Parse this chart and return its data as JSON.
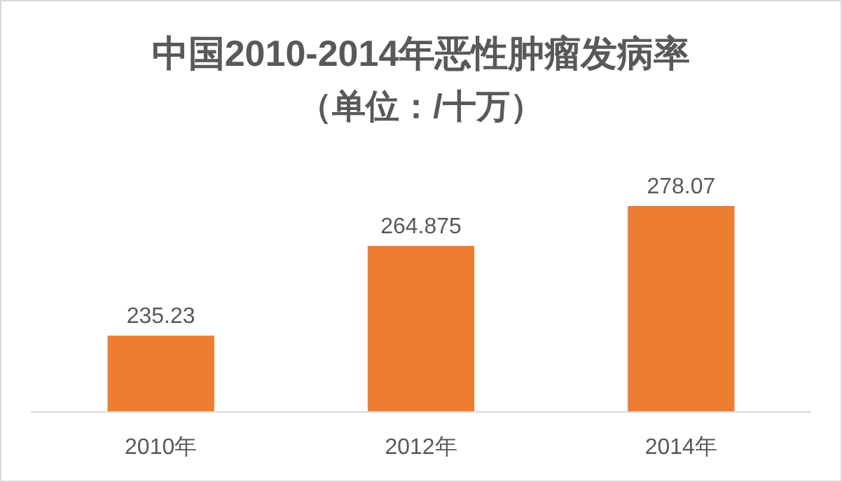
{
  "chart_data": {
    "type": "bar",
    "title": "中国2010-2014年恶性肿瘤发病率",
    "subtitle": "（单位：/十万）",
    "categories": [
      "2010年",
      "2012年",
      "2014年"
    ],
    "values": [
      235.23,
      264.875,
      278.07
    ],
    "color": "#ed7d31",
    "ylim": [
      210,
      278.07
    ],
    "data_labels": true,
    "tick_labels": "x"
  }
}
